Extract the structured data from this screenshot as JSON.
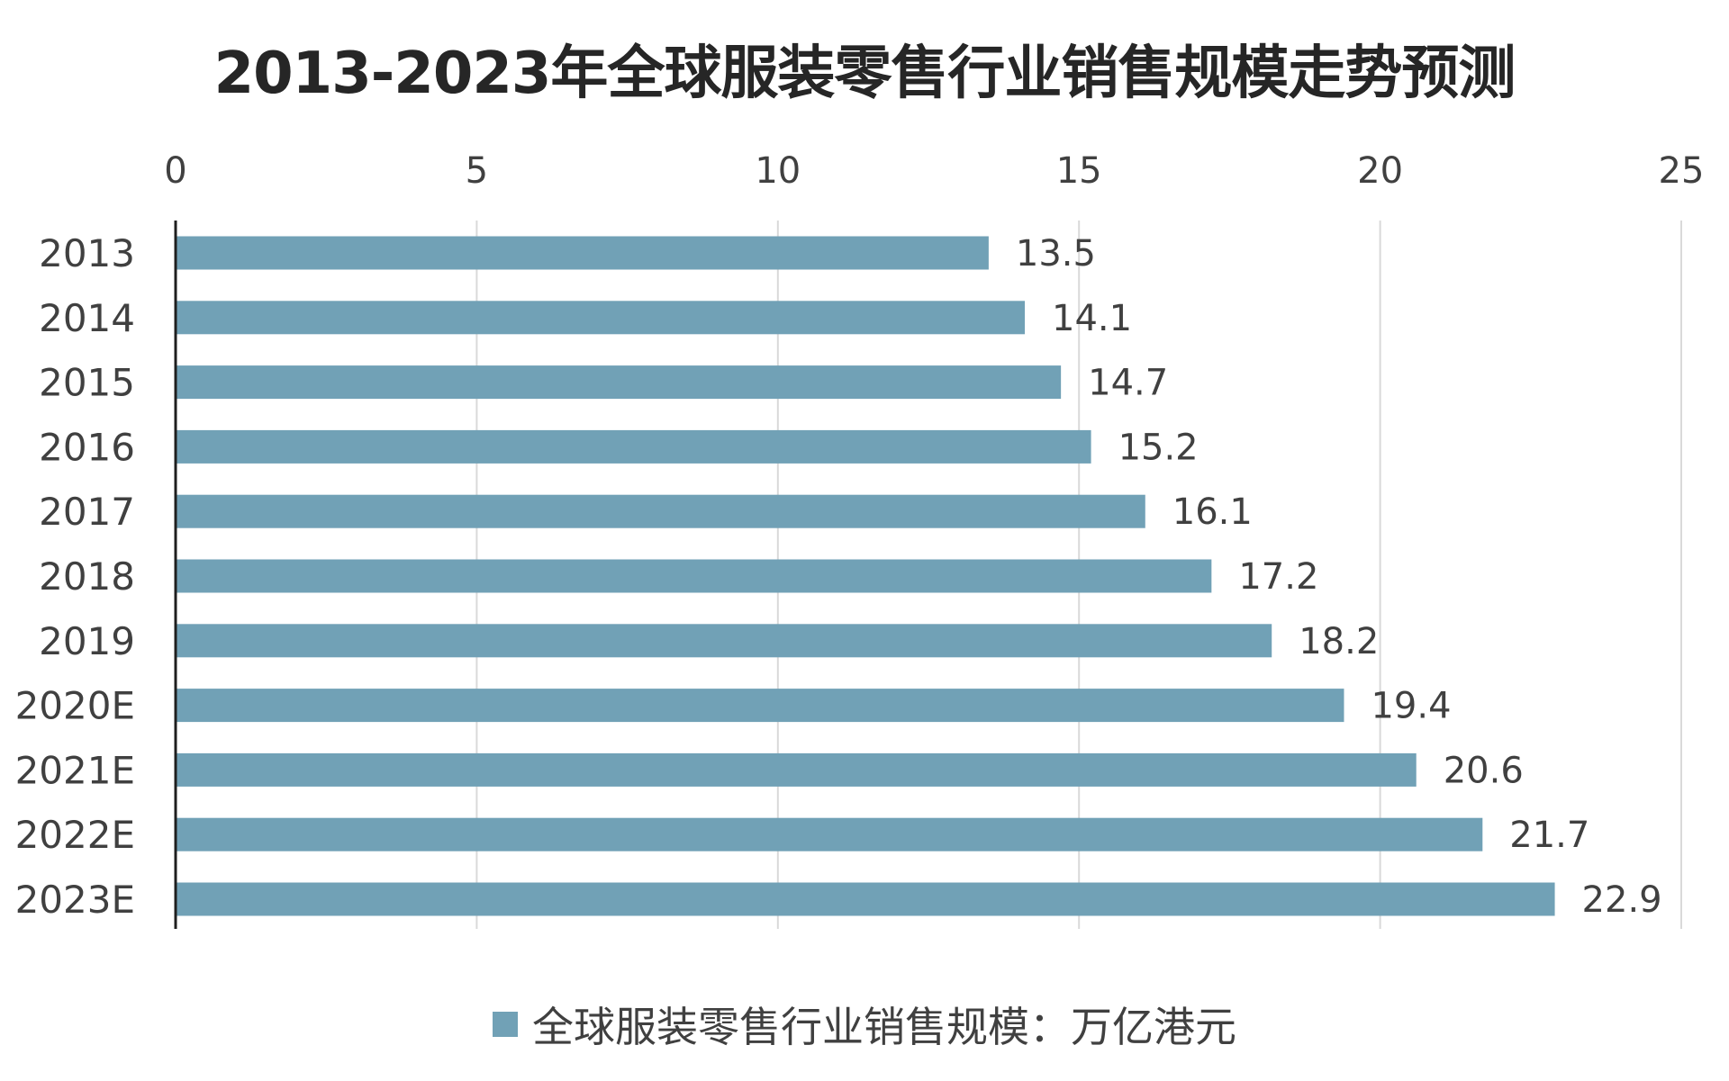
{
  "chart_data": {
    "type": "bar",
    "orientation": "horizontal",
    "title": "2013-2023年全球服装零售行业销售规模走势预测",
    "categories": [
      "2013",
      "2014",
      "2015",
      "2016",
      "2017",
      "2018",
      "2019",
      "2020E",
      "2021E",
      "2022E",
      "2023E"
    ],
    "series": [
      {
        "name": "全球服装零售行业销售规模：万亿港元",
        "values": [
          13.5,
          14.1,
          14.7,
          15.2,
          16.1,
          17.2,
          18.2,
          19.4,
          20.6,
          21.7,
          22.9
        ],
        "color": "#71A1B6"
      }
    ],
    "value_axis": {
      "position": "top",
      "range": [
        0,
        25
      ],
      "ticks": [
        "0",
        "5",
        "10",
        "15",
        "20",
        "25"
      ],
      "gridlines": true
    },
    "xlabel": "",
    "ylabel": "",
    "legend_position": "bottom",
    "data_labels": true
  }
}
